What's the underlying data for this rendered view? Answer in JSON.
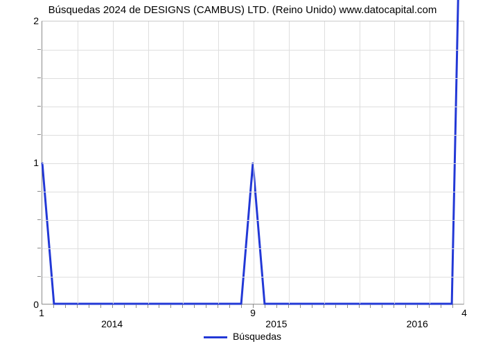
{
  "chart": {
    "type": "line",
    "title": "Búsquedas 2024 de DESIGNS (CAMBUS) LTD. (Reino Unido) www.datocapital.com",
    "title_fontsize": 15,
    "background_color": "#ffffff",
    "grid_color": "#dedede",
    "axis_border_color": "#8a8a8a",
    "plot_border_color": "#c9c9c9",
    "series": {
      "label": "Búsquedas",
      "color": "#2238d6",
      "line_width": 3,
      "x": [
        0,
        1,
        2,
        3,
        4,
        5,
        6,
        7,
        8,
        9,
        10,
        11,
        12,
        13,
        14,
        15,
        16,
        17,
        18,
        19,
        20,
        21,
        22,
        23,
        24,
        25,
        26,
        27,
        28,
        29,
        30,
        31,
        32,
        33,
        34,
        35,
        36
      ],
      "y": [
        1,
        0,
        0,
        0,
        0,
        0,
        0,
        0,
        0,
        0,
        0,
        0,
        0,
        0,
        0,
        0,
        0,
        0,
        1,
        0,
        0,
        0,
        0,
        0,
        0,
        0,
        0,
        0,
        0,
        0,
        0,
        0,
        0,
        0,
        0,
        0,
        4
      ]
    },
    "x": {
      "lim": [
        0,
        36
      ],
      "labels_at": [
        0,
        18,
        36
      ],
      "labels": [
        "1",
        "9",
        "4"
      ],
      "year_labels_at": [
        6,
        20,
        32
      ],
      "year_labels": [
        "2014",
        "2015",
        "2016"
      ],
      "gridlines_at": [
        3,
        6,
        9,
        12,
        15,
        18,
        21,
        24,
        27,
        30,
        33
      ],
      "minor_ticks_at": [
        1,
        2,
        3,
        4,
        5,
        6,
        7,
        8,
        9,
        10,
        11,
        12,
        13,
        14,
        15,
        16,
        17,
        18,
        19,
        20,
        21,
        22,
        23,
        24,
        25,
        26,
        27,
        28,
        29,
        30,
        31,
        32,
        33,
        34,
        35
      ]
    },
    "y": {
      "lim": [
        0,
        2
      ],
      "ticks_at": [
        0,
        1,
        2
      ],
      "tick_labels": [
        "0",
        "1",
        "2"
      ],
      "minor_count_between": 4,
      "gridlines_at": [
        0.2,
        0.4,
        0.6,
        0.8,
        1.0,
        1.2,
        1.4,
        1.6,
        1.8
      ]
    },
    "legend": {
      "position": "bottom-center",
      "item_label": "Búsquedas"
    }
  }
}
